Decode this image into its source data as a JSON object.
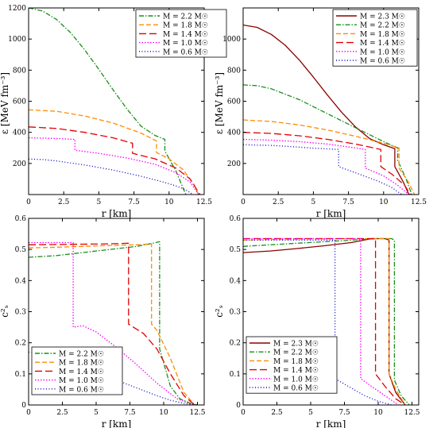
{
  "chart_data": [
    {
      "type": "line",
      "xlabel": "r [km]",
      "ylabel": "ε [MeV fm⁻³]",
      "xlim": [
        0,
        12.5
      ],
      "ylim": [
        0,
        1200
      ],
      "xticks": [
        "0",
        "2.5",
        "5",
        "7.5",
        "10",
        "12.5"
      ],
      "yticks": [
        "200",
        "400",
        "600",
        "800",
        "1000",
        "1200"
      ],
      "ytick_values": [
        200,
        400,
        600,
        800,
        1000,
        1200
      ],
      "legend_position": "top-right",
      "series": [
        {
          "name": "M = 2.2 M☉",
          "color": "#1a8f1a",
          "dash": "dashdot",
          "x": [
            0,
            1,
            2,
            3,
            4,
            5,
            6,
            7,
            8,
            9,
            9.7,
            9.7,
            10.5,
            11,
            11.2
          ],
          "y": [
            1200,
            1180,
            1125,
            1040,
            930,
            805,
            675,
            550,
            440,
            380,
            355,
            280,
            150,
            40,
            0
          ]
        },
        {
          "name": "M = 1.8 M☉",
          "color": "#ff8c00",
          "dash": "dash",
          "x": [
            0,
            2,
            4,
            6,
            8,
            9.1,
            9.1,
            10,
            11,
            11.8,
            12.1
          ],
          "y": [
            545,
            535,
            505,
            460,
            395,
            345,
            270,
            230,
            160,
            60,
            0
          ]
        },
        {
          "name": "M = 1.4 M☉",
          "color": "#e00000",
          "dash": "longdash",
          "x": [
            0,
            2,
            4,
            6,
            7.4,
            7.4,
            9,
            10.5,
            11.5,
            12.2
          ],
          "y": [
            435,
            425,
            400,
            365,
            330,
            265,
            230,
            170,
            100,
            0
          ]
        },
        {
          "name": "M = 1.0 M☉",
          "color": "#ff00ff",
          "dash": "dot",
          "x": [
            0,
            2,
            3.3,
            3.3,
            5,
            7,
            9,
            10.5,
            11.5,
            12.1
          ],
          "y": [
            365,
            360,
            355,
            285,
            265,
            235,
            195,
            140,
            80,
            0
          ]
        },
        {
          "name": "M = 0.6 M☉",
          "color": "#0000cc",
          "dash": "finedot",
          "x": [
            0,
            1,
            2,
            4,
            6,
            8,
            9.5,
            10.5,
            11.2,
            11.7
          ],
          "y": [
            228,
            225,
            216,
            190,
            158,
            118,
            82,
            55,
            30,
            0
          ]
        }
      ]
    },
    {
      "type": "line",
      "xlabel": "r [km]",
      "ylabel": "ε [MeV fm⁻³]",
      "xlim": [
        0,
        12.5
      ],
      "ylim": [
        0,
        1200
      ],
      "xticks": [
        "0",
        "2.5",
        "5",
        "7.5",
        "10",
        "12.5"
      ],
      "yticks": [
        "200",
        "400",
        "600",
        "800",
        "1000"
      ],
      "ytick_values": [
        200,
        400,
        600,
        800,
        1000
      ],
      "legend_position": "top-right",
      "series": [
        {
          "name": "M = 2.3 M☉",
          "color": "#8b0000",
          "dash": "solid",
          "x": [
            0,
            1,
            2,
            3,
            4,
            5,
            6,
            7,
            8,
            9,
            10,
            10.8,
            10.8,
            11.4,
            11.8
          ],
          "y": [
            1090,
            1075,
            1030,
            960,
            865,
            755,
            640,
            530,
            435,
            360,
            320,
            295,
            180,
            80,
            0
          ]
        },
        {
          "name": "M = 2.2 M☉",
          "color": "#1a8f1a",
          "dash": "dashdot",
          "x": [
            0,
            1,
            2,
            4,
            6,
            8,
            9,
            10,
            11,
            11,
            11.6,
            12
          ],
          "y": [
            705,
            700,
            680,
            610,
            520,
            430,
            385,
            340,
            300,
            220,
            100,
            0
          ]
        },
        {
          "name": "M = 1.8 M☉",
          "color": "#ff8c00",
          "dash": "dash",
          "x": [
            0,
            2,
            4,
            6,
            8,
            10,
            11.1,
            11.1,
            11.7,
            12.2
          ],
          "y": [
            480,
            470,
            448,
            415,
            375,
            330,
            300,
            170,
            90,
            0
          ]
        },
        {
          "name": "M = 1.4 M☉",
          "color": "#e00000",
          "dash": "longdash",
          "x": [
            0,
            2,
            4,
            6,
            8,
            9.8,
            9.8,
            10.6,
            11.5,
            11.9
          ],
          "y": [
            400,
            393,
            378,
            355,
            325,
            290,
            180,
            130,
            60,
            0
          ]
        },
        {
          "name": "M = 1.0 M☉",
          "color": "#ff00ff",
          "dash": "dot",
          "x": [
            0,
            2,
            4,
            6,
            8,
            8.7,
            8.7,
            10,
            11,
            11.8
          ],
          "y": [
            355,
            350,
            340,
            325,
            300,
            290,
            170,
            120,
            60,
            0
          ]
        },
        {
          "name": "M = 0.6 M☉",
          "color": "#0000cc",
          "dash": "finedot",
          "x": [
            0,
            2,
            4,
            5,
            6.8,
            6.8,
            8,
            9.5,
            10.5,
            11.3
          ],
          "y": [
            320,
            316,
            305,
            298,
            290,
            180,
            140,
            90,
            50,
            0
          ]
        }
      ]
    },
    {
      "type": "line",
      "xlabel": "r [km]",
      "ylabel": "c²ₛ",
      "xlim": [
        0,
        13
      ],
      "ylim": [
        0,
        0.6
      ],
      "xticks": [
        "0",
        "2.5",
        "5",
        "7.5",
        "10",
        "12.5"
      ],
      "yticks": [
        "0",
        "0.1",
        "0.2",
        "0.3",
        "0.4",
        "0.5",
        "0.6"
      ],
      "ytick_values": [
        0,
        0.1,
        0.2,
        0.3,
        0.4,
        0.5,
        0.6
      ],
      "legend_position": "bottom-left",
      "series": [
        {
          "name": "M = 2.2 M☉",
          "color": "#1a8f1a",
          "dash": "dashdot",
          "x": [
            0,
            2,
            4,
            6,
            8,
            9.2,
            9.7,
            9.7,
            10.5,
            11.2,
            12,
            12.5
          ],
          "y": [
            0.475,
            0.48,
            0.49,
            0.5,
            0.51,
            0.52,
            0.525,
            0.18,
            0.06,
            0.02,
            0.005,
            0
          ]
        },
        {
          "name": "M = 1.8 M☉",
          "color": "#ff8c00",
          "dash": "dash",
          "x": [
            0,
            2,
            4,
            6,
            8,
            9.1,
            9.1,
            9.5,
            10.5,
            11.5,
            12.3
          ],
          "y": [
            0.505,
            0.507,
            0.51,
            0.513,
            0.515,
            0.518,
            0.26,
            0.24,
            0.15,
            0.04,
            0
          ]
        },
        {
          "name": "M = 1.4 M☉",
          "color": "#e00000",
          "dash": "longdash",
          "x": [
            0,
            2,
            4,
            6,
            7.4,
            7.4,
            8.5,
            9.5,
            10.5,
            11.5,
            12.3
          ],
          "y": [
            0.515,
            0.516,
            0.517,
            0.518,
            0.52,
            0.26,
            0.23,
            0.18,
            0.1,
            0.03,
            0
          ]
        },
        {
          "name": "M = 1.0 M☉",
          "color": "#ff00ff",
          "dash": "dot",
          "x": [
            0,
            2,
            3.3,
            3.3,
            4,
            5,
            6.5,
            8,
            9.5,
            11,
            12.2
          ],
          "y": [
            0.522,
            0.522,
            0.522,
            0.25,
            0.255,
            0.235,
            0.185,
            0.13,
            0.07,
            0.02,
            0
          ]
        },
        {
          "name": "M = 0.6 M☉",
          "color": "#0000cc",
          "dash": "finedot",
          "x": [
            0,
            1,
            2,
            3.5,
            5,
            6.5,
            8,
            9.5,
            10.5,
            11.5,
            12.5
          ],
          "y": [
            0.17,
            0.165,
            0.155,
            0.135,
            0.11,
            0.08,
            0.055,
            0.03,
            0.015,
            0.005,
            0
          ]
        }
      ]
    },
    {
      "type": "line",
      "xlabel": "r [km]",
      "ylabel": "c²ₛ",
      "xlim": [
        0,
        13
      ],
      "ylim": [
        0,
        0.6
      ],
      "xticks": [
        "0",
        "2.5",
        "5",
        "7.5",
        "10",
        "12.5"
      ],
      "yticks": [
        "0",
        "0.1",
        "0.2",
        "0.3",
        "0.4",
        "0.5",
        "0.6"
      ],
      "ytick_values": [
        0,
        0.1,
        0.2,
        0.3,
        0.4,
        0.5,
        0.6
      ],
      "legend_position": "bottom-left",
      "series": [
        {
          "name": "M = 2.3 M☉",
          "color": "#8b0000",
          "dash": "solid",
          "x": [
            0,
            2,
            4,
            6,
            8,
            9.5,
            10.5,
            10.8,
            10.8,
            11.3,
            12
          ],
          "y": [
            0.49,
            0.495,
            0.503,
            0.512,
            0.522,
            0.535,
            0.535,
            0.53,
            0.1,
            0.04,
            0
          ]
        },
        {
          "name": "M = 2.2 M☉",
          "color": "#1a8f1a",
          "dash": "dashdot",
          "x": [
            0,
            2,
            4,
            6,
            8,
            10,
            11,
            11.2,
            11.2,
            11.7,
            12.3
          ],
          "y": [
            0.51,
            0.515,
            0.52,
            0.525,
            0.53,
            0.535,
            0.535,
            0.53,
            0.08,
            0.03,
            0
          ]
        },
        {
          "name": "M = 1.8 M☉",
          "color": "#ff8c00",
          "dash": "dash",
          "x": [
            0,
            2,
            4,
            6,
            8,
            10,
            10.8,
            10.8,
            11.3,
            12
          ],
          "y": [
            0.53,
            0.532,
            0.533,
            0.534,
            0.535,
            0.535,
            0.535,
            0.1,
            0.05,
            0
          ]
        },
        {
          "name": "M = 1.4 M☉",
          "color": "#e00000",
          "dash": "longdash",
          "x": [
            0,
            2,
            4,
            6,
            8,
            9.8,
            9.8,
            10.5,
            11.3,
            12
          ],
          "y": [
            0.535,
            0.535,
            0.535,
            0.535,
            0.535,
            0.535,
            0.1,
            0.06,
            0.02,
            0
          ]
        },
        {
          "name": "M = 1.0 M☉",
          "color": "#ff00ff",
          "dash": "dot",
          "x": [
            0,
            2,
            4,
            6,
            8,
            8.7,
            8.7,
            9.5,
            10.5,
            11.5
          ],
          "y": [
            0.535,
            0.535,
            0.535,
            0.535,
            0.535,
            0.535,
            0.085,
            0.06,
            0.03,
            0
          ]
        },
        {
          "name": "M = 0.6 M☉",
          "color": "#0000cc",
          "dash": "finedot",
          "x": [
            0,
            2,
            4,
            5.5,
            6.8,
            6.8,
            8,
            9,
            10,
            11
          ],
          "y": [
            0.53,
            0.53,
            0.53,
            0.53,
            0.53,
            0.085,
            0.055,
            0.03,
            0.012,
            0
          ]
        }
      ]
    }
  ]
}
